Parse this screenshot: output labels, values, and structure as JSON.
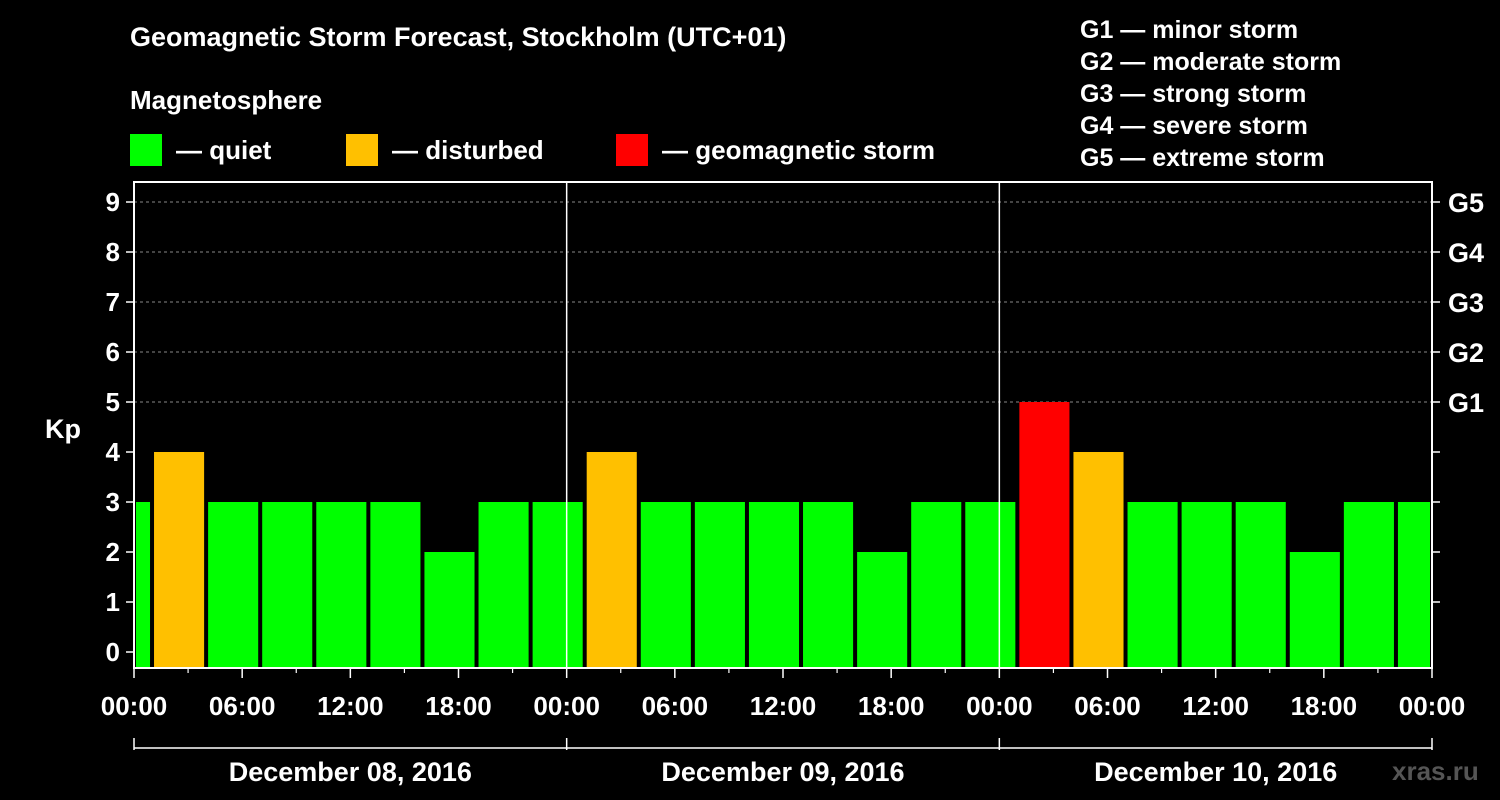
{
  "chart_data": {
    "type": "bar",
    "title": "Geomagnetic Storm Forecast, Stockholm (UTC+01)",
    "subtitle": "Magnetosphere",
    "ylabel": "Kp",
    "ylim": [
      0,
      9.5
    ],
    "xlim_hours": [
      0,
      72
    ],
    "grid": true,
    "y_ticks": [
      0,
      1,
      2,
      3,
      4,
      5,
      6,
      7,
      8,
      9
    ],
    "right_ticks": [
      {
        "value": 5,
        "label": "G1"
      },
      {
        "value": 6,
        "label": "G2"
      },
      {
        "value": 7,
        "label": "G3"
      },
      {
        "value": 8,
        "label": "G4"
      },
      {
        "value": 9,
        "label": "G5"
      }
    ],
    "x_ticks": [
      {
        "hour": 0,
        "label": "00:00"
      },
      {
        "hour": 6,
        "label": "06:00"
      },
      {
        "hour": 12,
        "label": "12:00"
      },
      {
        "hour": 18,
        "label": "18:00"
      },
      {
        "hour": 24,
        "label": "00:00"
      },
      {
        "hour": 30,
        "label": "06:00"
      },
      {
        "hour": 36,
        "label": "12:00"
      },
      {
        "hour": 42,
        "label": "18:00"
      },
      {
        "hour": 48,
        "label": "00:00"
      },
      {
        "hour": 54,
        "label": "06:00"
      },
      {
        "hour": 60,
        "label": "12:00"
      },
      {
        "hour": 66,
        "label": "18:00"
      },
      {
        "hour": 72,
        "label": "00:00"
      }
    ],
    "days": [
      {
        "label": "December 08, 2016",
        "start": 0,
        "end": 24
      },
      {
        "label": "December 09, 2016",
        "start": 24,
        "end": 48
      },
      {
        "label": "December 10, 2016",
        "start": 48,
        "end": 72
      }
    ],
    "series": [
      {
        "name": "Kp",
        "bars": [
          {
            "start": 0,
            "end": 1,
            "value": 3,
            "level": "quiet"
          },
          {
            "start": 1,
            "end": 4,
            "value": 4,
            "level": "disturbed"
          },
          {
            "start": 4,
            "end": 7,
            "value": 3,
            "level": "quiet"
          },
          {
            "start": 7,
            "end": 10,
            "value": 3,
            "level": "quiet"
          },
          {
            "start": 10,
            "end": 13,
            "value": 3,
            "level": "quiet"
          },
          {
            "start": 13,
            "end": 16,
            "value": 3,
            "level": "quiet"
          },
          {
            "start": 16,
            "end": 19,
            "value": 2,
            "level": "quiet"
          },
          {
            "start": 19,
            "end": 22,
            "value": 3,
            "level": "quiet"
          },
          {
            "start": 22,
            "end": 25,
            "value": 3,
            "level": "quiet"
          },
          {
            "start": 25,
            "end": 28,
            "value": 4,
            "level": "disturbed"
          },
          {
            "start": 28,
            "end": 31,
            "value": 3,
            "level": "quiet"
          },
          {
            "start": 31,
            "end": 34,
            "value": 3,
            "level": "quiet"
          },
          {
            "start": 34,
            "end": 37,
            "value": 3,
            "level": "quiet"
          },
          {
            "start": 37,
            "end": 40,
            "value": 3,
            "level": "quiet"
          },
          {
            "start": 40,
            "end": 43,
            "value": 2,
            "level": "quiet"
          },
          {
            "start": 43,
            "end": 46,
            "value": 3,
            "level": "quiet"
          },
          {
            "start": 46,
            "end": 49,
            "value": 3,
            "level": "quiet"
          },
          {
            "start": 49,
            "end": 52,
            "value": 5,
            "level": "storm"
          },
          {
            "start": 52,
            "end": 55,
            "value": 4,
            "level": "disturbed"
          },
          {
            "start": 55,
            "end": 58,
            "value": 3,
            "level": "quiet"
          },
          {
            "start": 58,
            "end": 61,
            "value": 3,
            "level": "quiet"
          },
          {
            "start": 61,
            "end": 64,
            "value": 3,
            "level": "quiet"
          },
          {
            "start": 64,
            "end": 67,
            "value": 2,
            "level": "quiet"
          },
          {
            "start": 67,
            "end": 70,
            "value": 3,
            "level": "quiet"
          },
          {
            "start": 70,
            "end": 72,
            "value": 3,
            "level": "quiet"
          }
        ]
      }
    ]
  },
  "legend": [
    {
      "key": "quiet",
      "label": "— quiet",
      "color": "#00ff00"
    },
    {
      "key": "disturbed",
      "label": "— disturbed",
      "color": "#ffc000"
    },
    {
      "key": "storm",
      "label": "— geomagnetic storm",
      "color": "#ff0000"
    }
  ],
  "storm_scale": [
    "G1 — minor storm",
    "G2 — moderate storm",
    "G3 — strong storm",
    "G4 — severe storm",
    "G5 — extreme storm"
  ],
  "watermark": "xras.ru"
}
